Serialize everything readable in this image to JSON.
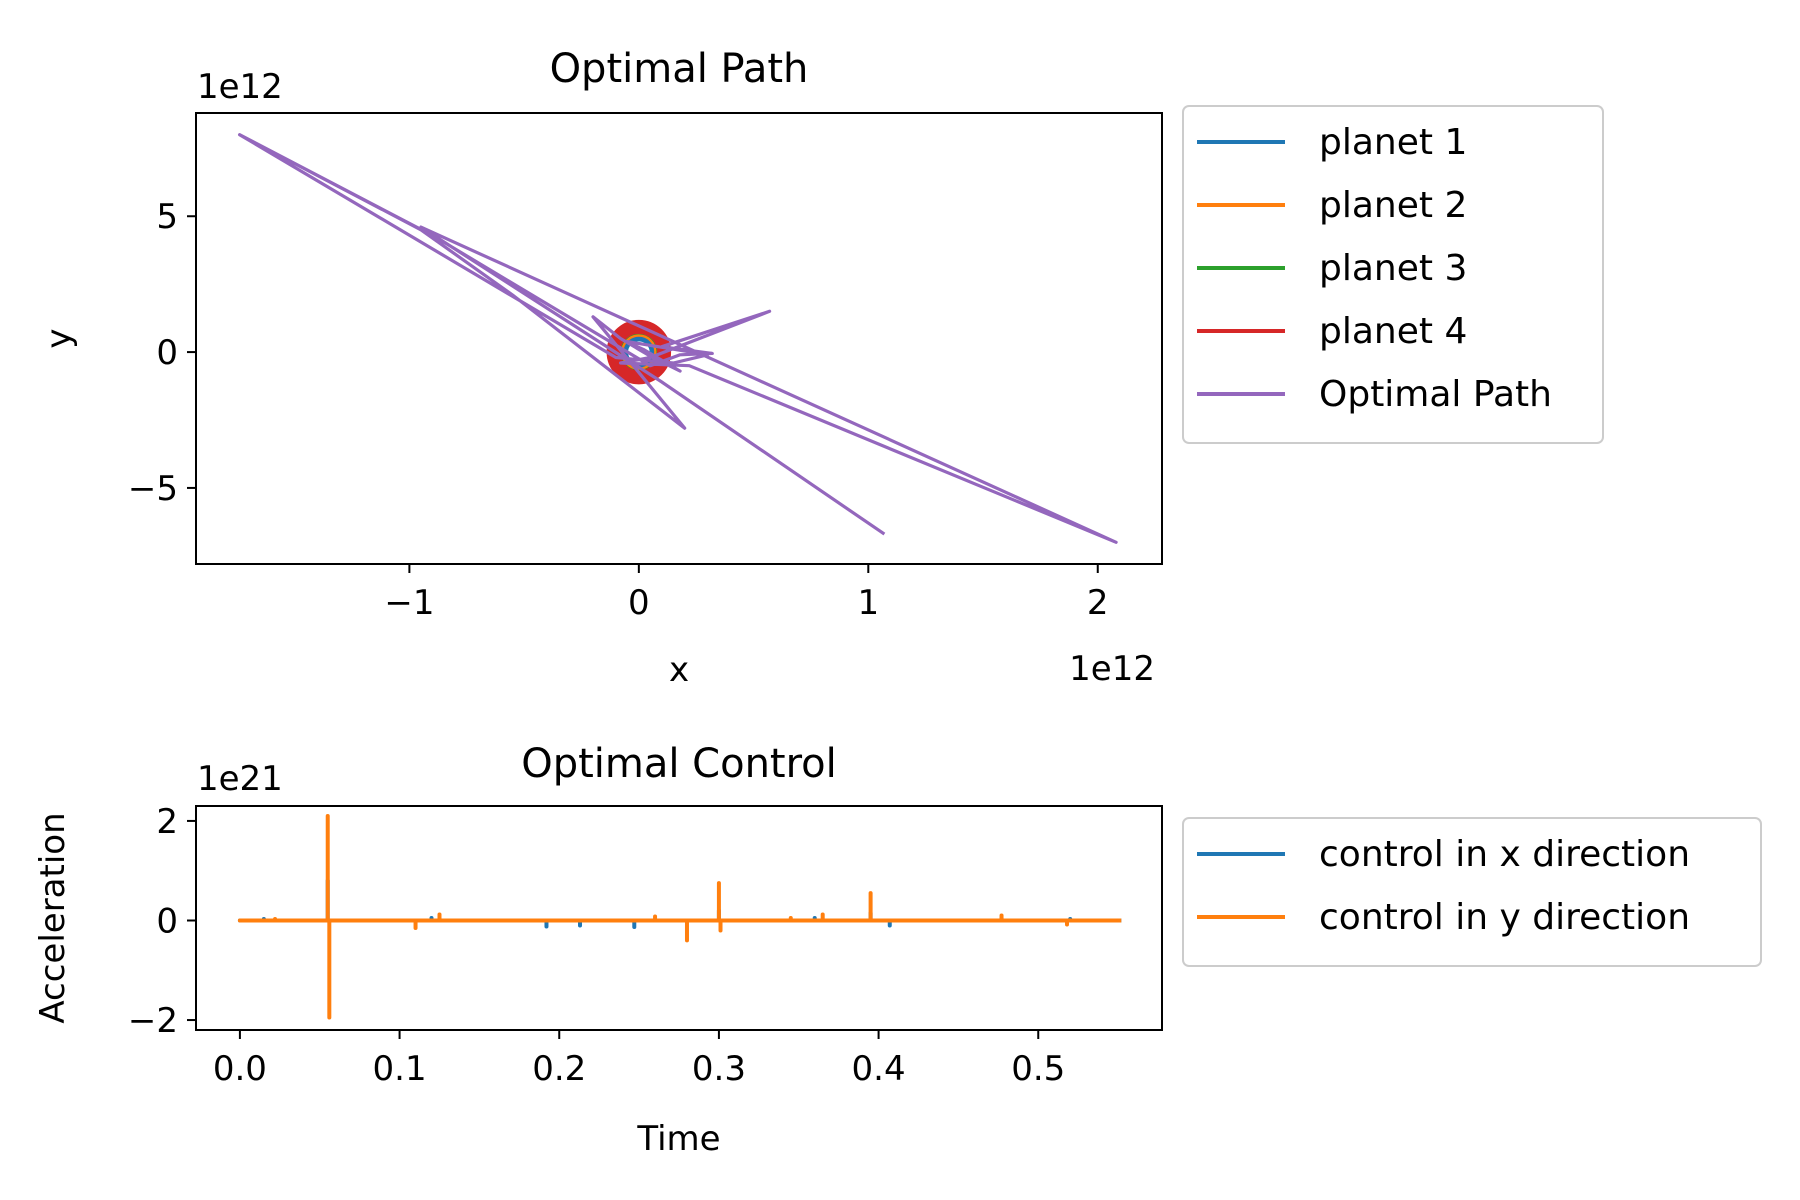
{
  "chart_data": [
    {
      "type": "line",
      "title": "Optimal Path",
      "xlabel": "x",
      "ylabel": "y",
      "x_offset_label": "1e12",
      "y_offset_label": "1e12",
      "xlim": [
        -1.93,
        2.28
      ],
      "ylim": [
        -7.8,
        8.8
      ],
      "xticks": [
        -1,
        0,
        1,
        2
      ],
      "xtick_labels": [
        "−1",
        "0",
        "1",
        "2"
      ],
      "yticks": [
        -5,
        0,
        5
      ],
      "ytick_labels": [
        "−5",
        "0",
        "5"
      ],
      "grid": false,
      "legend_position": "outside-right-top",
      "series": [
        {
          "name": "planet 1",
          "color": "#1f77b4",
          "kind": "circle",
          "cx": 0,
          "cy": 0,
          "r": 0.06
        },
        {
          "name": "planet 2",
          "color": "#ff7f0e",
          "kind": "circle",
          "cx": 0,
          "cy": 0,
          "r": 0.08
        },
        {
          "name": "planet 3",
          "color": "#2ca02c",
          "kind": "circle",
          "cx": 0,
          "cy": 0,
          "r": 0.09
        },
        {
          "name": "planet 4",
          "color": "#d62728",
          "kind": "circle",
          "cx": 0,
          "cy": 0,
          "r": 0.11
        },
        {
          "name": "Optimal Path",
          "color": "#9467bd",
          "kind": "line",
          "x": [
            -1.74,
            -0.95,
            -0.55,
            0.2,
            -0.2,
            -0.08,
            0.06,
            0.18,
            0.02,
            -0.06,
            0.3,
            0.15,
            -0.1,
            -1.74,
            -0.9,
            0.05,
            0.18,
            0.32,
            0.1,
            0.57,
            0.05,
            -0.08,
            0.22,
            2.08,
            -0.95,
            0.1,
            1.07
          ],
          "y": [
            8.0,
            4.5,
            2.1,
            -2.8,
            1.3,
            0.5,
            -0.2,
            -0.7,
            0.1,
            0.4,
            -0.1,
            -0.4,
            -0.2,
            8.0,
            4.3,
            -0.5,
            -0.1,
            -0.05,
            0.2,
            1.5,
            -0.2,
            -0.4,
            -0.5,
            -7.0,
            4.6,
            -1.1,
            -6.7
          ]
        }
      ]
    },
    {
      "type": "line",
      "title": "Optimal Control",
      "xlabel": "Time",
      "ylabel": "Acceleration",
      "y_offset_label": "1e21",
      "xlim": [
        -0.0275,
        0.5775
      ],
      "ylim": [
        -2.2,
        2.3
      ],
      "xticks": [
        0.0,
        0.1,
        0.2,
        0.3,
        0.4,
        0.5
      ],
      "xtick_labels": [
        "0.0",
        "0.1",
        "0.2",
        "0.3",
        "0.4",
        "0.5"
      ],
      "yticks": [
        -2,
        0,
        2
      ],
      "ytick_labels": [
        "−2",
        "0",
        "2"
      ],
      "grid": false,
      "legend_position": "outside-right-top",
      "series": [
        {
          "name": "control in x direction",
          "color": "#1f77b4",
          "kind": "spikes",
          "x": [
            0.0,
            0.015,
            0.055,
            0.12,
            0.192,
            0.213,
            0.247,
            0.3,
            0.36,
            0.395,
            0.407,
            0.477,
            0.52,
            0.55
          ],
          "y": [
            0.0,
            0.03,
            0.8,
            0.05,
            -0.12,
            -0.1,
            -0.13,
            0.2,
            0.05,
            0.15,
            -0.1,
            0.05,
            0.03,
            0.0
          ]
        },
        {
          "name": "control in y direction",
          "color": "#ff7f0e",
          "kind": "spikes",
          "x": [
            0.0,
            0.022,
            0.055,
            0.056,
            0.11,
            0.125,
            0.26,
            0.28,
            0.3,
            0.301,
            0.345,
            0.365,
            0.395,
            0.477,
            0.518,
            0.55
          ],
          "y": [
            0.0,
            0.03,
            2.1,
            -1.95,
            -0.15,
            0.12,
            0.08,
            -0.4,
            0.75,
            -0.2,
            0.05,
            0.12,
            0.55,
            0.1,
            -0.08,
            0.0
          ]
        }
      ]
    }
  ]
}
